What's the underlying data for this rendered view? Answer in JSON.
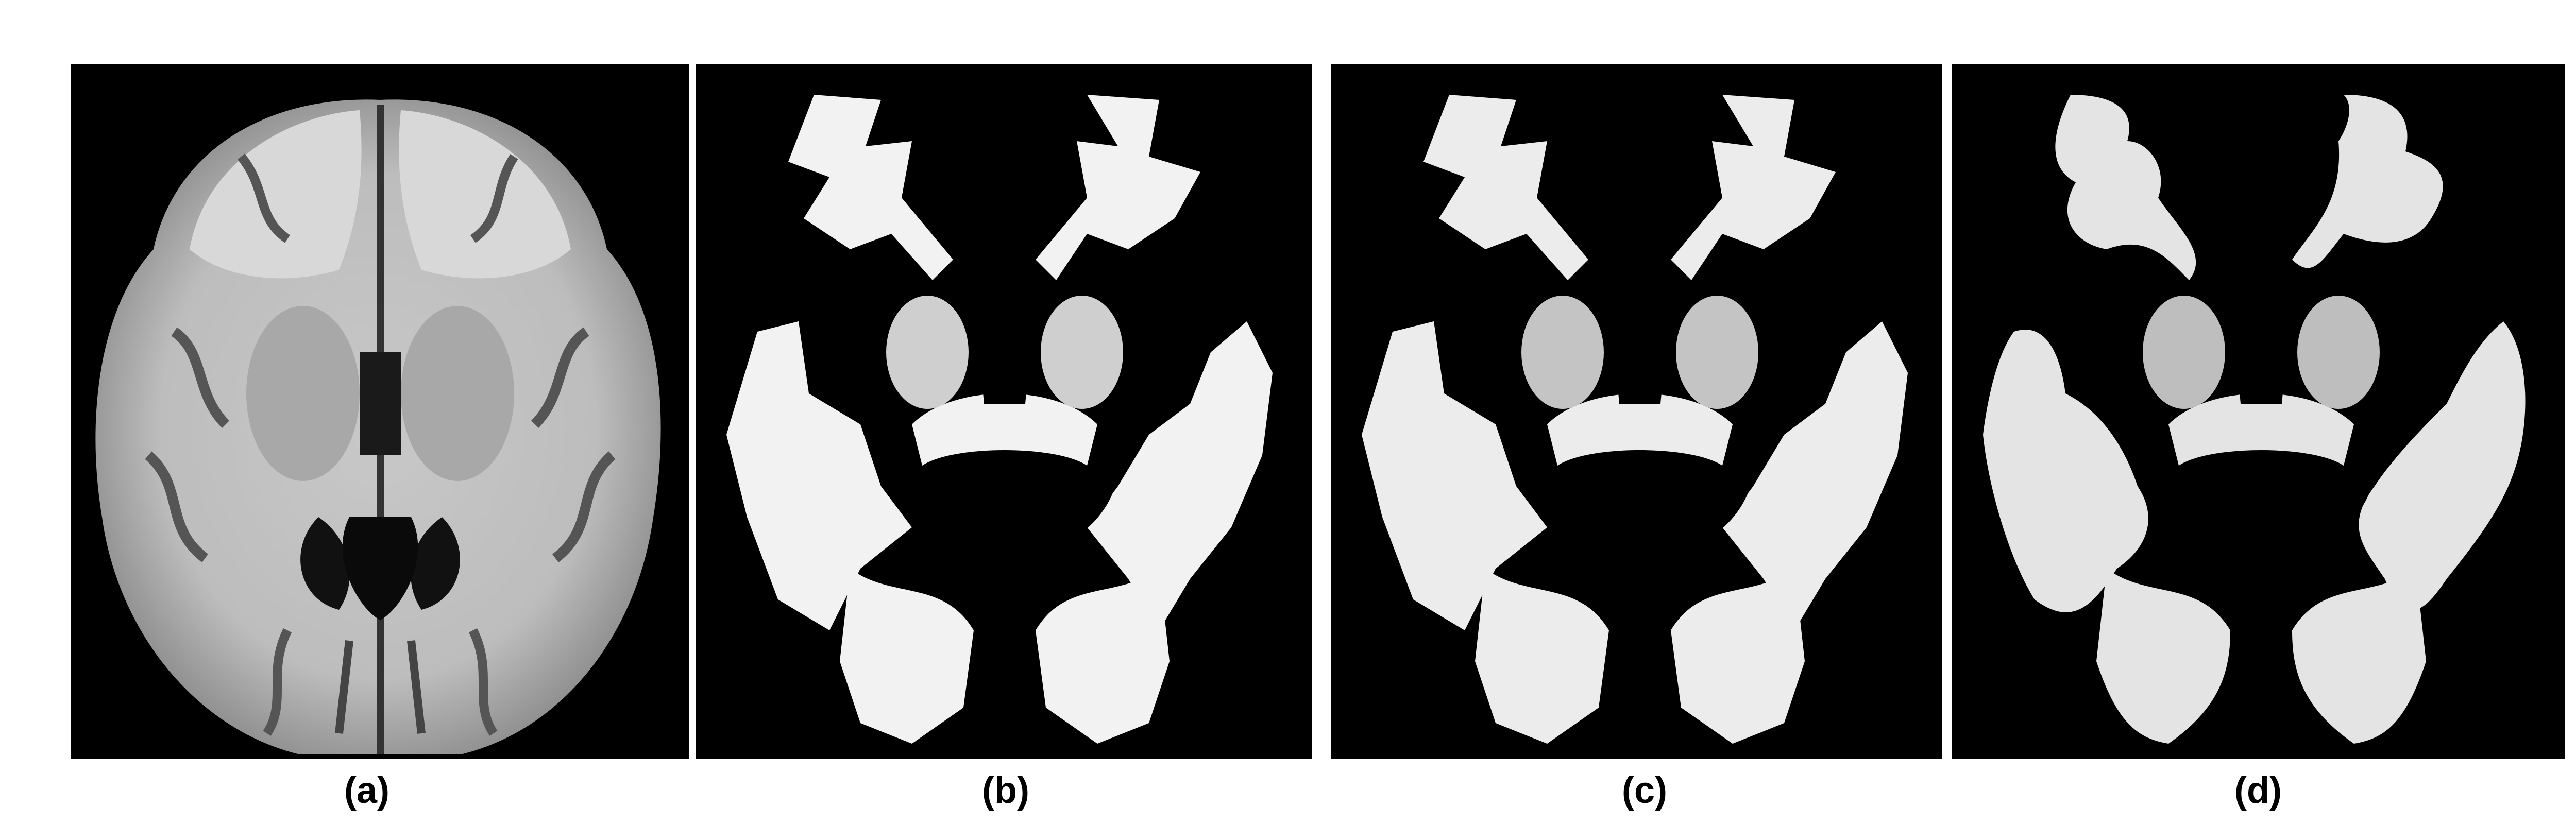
{
  "figure": {
    "panels": [
      {
        "id": "a",
        "caption": "(a)",
        "description_icon": "brain-mri-axial-t1-icon"
      },
      {
        "id": "b",
        "caption": "(b)",
        "description_icon": "white-matter-segmentation-icon"
      },
      {
        "id": "c",
        "caption": "(c)",
        "description_icon": "white-matter-segmentation-icon"
      },
      {
        "id": "d",
        "caption": "(d)",
        "description_icon": "white-matter-segmentation-icon"
      }
    ]
  },
  "colors": {
    "background": "#000000",
    "tissue_gray": "#9a9a9a",
    "tissue_white": "#e8e8e8"
  }
}
